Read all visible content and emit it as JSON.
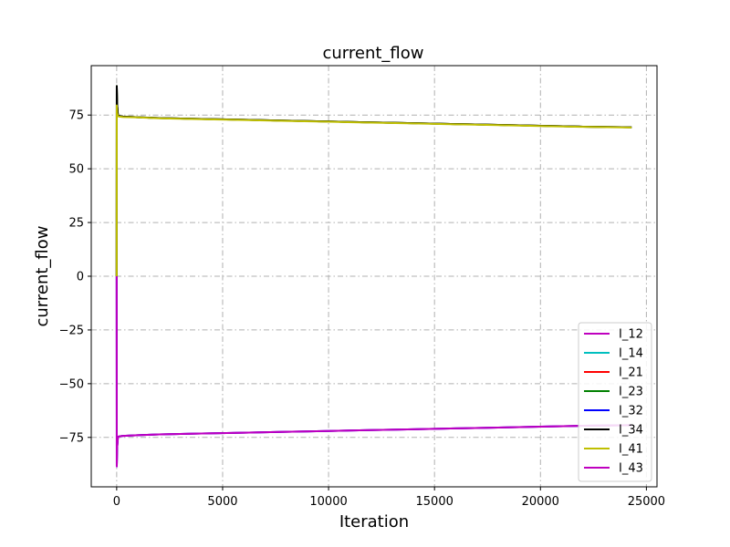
{
  "chart_data": {
    "type": "line",
    "title": "current_flow",
    "xlabel": "Iteration",
    "ylabel": "current_flow",
    "xlim": [
      -1200,
      25500
    ],
    "ylim": [
      -98,
      98
    ],
    "xticks": [
      0,
      5000,
      10000,
      15000,
      20000,
      25000
    ],
    "xtick_labels": [
      "0",
      "5000",
      "10000",
      "15000",
      "20000",
      "25000"
    ],
    "yticks": [
      -75,
      -50,
      -25,
      0,
      25,
      50,
      75
    ],
    "ytick_labels": [
      "−75",
      "−50",
      "−25",
      "0",
      "25",
      "50",
      "75"
    ],
    "grid": true,
    "legend_position": "lower-right",
    "series": [
      {
        "name": "I_12",
        "color": "#bf00bf",
        "x": [
          0,
          5,
          20,
          60,
          120,
          300,
          1000,
          2000,
          4000,
          6000,
          8000,
          10000,
          12000,
          14000,
          16000,
          18000,
          20000,
          22000,
          24300
        ],
        "y": [
          0,
          -88.5,
          -80,
          -74.8,
          -74.5,
          -74.3,
          -74.0,
          -73.6,
          -73.2,
          -72.8,
          -72.4,
          -72.0,
          -71.6,
          -71.2,
          -70.8,
          -70.4,
          -70.0,
          -69.6,
          -69.3
        ]
      },
      {
        "name": "I_14",
        "color": "#00bfbf",
        "x": [
          0,
          5,
          20,
          60,
          120,
          300,
          1000,
          2000,
          4000,
          6000,
          8000,
          10000,
          12000,
          14000,
          16000,
          18000,
          20000,
          22000,
          24300
        ],
        "y": [
          0,
          88.5,
          80,
          74.8,
          74.5,
          74.3,
          74.0,
          73.6,
          73.2,
          72.8,
          72.4,
          72.0,
          71.6,
          71.2,
          70.8,
          70.4,
          70.0,
          69.6,
          69.3
        ]
      },
      {
        "name": "I_21",
        "color": "#ff0000",
        "x": [
          0,
          5,
          20,
          60,
          120,
          300,
          1000,
          2000,
          4000,
          6000,
          8000,
          10000,
          12000,
          14000,
          16000,
          18000,
          20000,
          22000,
          24300
        ],
        "y": [
          0,
          88.5,
          80,
          74.8,
          74.5,
          74.3,
          74.0,
          73.6,
          73.2,
          72.8,
          72.4,
          72.0,
          71.6,
          71.2,
          70.8,
          70.4,
          70.0,
          69.6,
          69.3
        ]
      },
      {
        "name": "I_23",
        "color": "#008000",
        "x": [
          0,
          5,
          20,
          60,
          120,
          300,
          1000,
          2000,
          4000,
          6000,
          8000,
          10000,
          12000,
          14000,
          16000,
          18000,
          20000,
          22000,
          24300
        ],
        "y": [
          0,
          88.5,
          80,
          74.8,
          74.5,
          74.3,
          74.0,
          73.6,
          73.2,
          72.8,
          72.4,
          72.0,
          71.6,
          71.2,
          70.8,
          70.4,
          70.0,
          69.6,
          69.3
        ]
      },
      {
        "name": "I_32",
        "color": "#0000ff",
        "x": [
          0,
          5,
          20,
          60,
          120,
          300,
          1000,
          2000,
          4000,
          6000,
          8000,
          10000,
          12000,
          14000,
          16000,
          18000,
          20000,
          22000,
          24300
        ],
        "y": [
          0,
          -88.5,
          -80,
          -74.8,
          -74.5,
          -74.3,
          -74.0,
          -73.6,
          -73.2,
          -72.8,
          -72.4,
          -72.0,
          -71.6,
          -71.2,
          -70.8,
          -70.4,
          -70.0,
          -69.6,
          -69.3
        ]
      },
      {
        "name": "I_34",
        "color": "#000000",
        "x": [
          0,
          5,
          20,
          60,
          120,
          300,
          1000,
          2000,
          4000,
          6000,
          8000,
          10000,
          12000,
          14000,
          16000,
          18000,
          20000,
          22000,
          24300
        ],
        "y": [
          0,
          88.5,
          80,
          74.8,
          74.5,
          74.3,
          74.0,
          73.6,
          73.2,
          72.8,
          72.4,
          72.0,
          71.6,
          71.2,
          70.8,
          70.4,
          70.0,
          69.6,
          69.3
        ]
      },
      {
        "name": "I_41",
        "color": "#bfbf00",
        "x": [
          0,
          5,
          20,
          60,
          120,
          300,
          1000,
          2000,
          4000,
          6000,
          8000,
          10000,
          12000,
          14000,
          16000,
          18000,
          20000,
          22000,
          24300
        ],
        "y": [
          0,
          79.5,
          76,
          74.5,
          74.3,
          74.1,
          73.9,
          73.5,
          73.1,
          72.7,
          72.3,
          71.9,
          71.5,
          71.1,
          70.7,
          70.3,
          69.9,
          69.5,
          69.2
        ]
      },
      {
        "name": "I_43",
        "color": "#bf00bf",
        "x": [
          0,
          5,
          20,
          60,
          120,
          300,
          1000,
          2000,
          4000,
          6000,
          8000,
          10000,
          12000,
          14000,
          16000,
          18000,
          20000,
          22000,
          24300
        ],
        "y": [
          0,
          -88.5,
          -80,
          -74.8,
          -74.5,
          -74.3,
          -74.0,
          -73.6,
          -73.2,
          -72.8,
          -72.4,
          -72.0,
          -71.6,
          -71.2,
          -70.8,
          -70.4,
          -70.0,
          -69.6,
          -69.3
        ]
      }
    ]
  }
}
